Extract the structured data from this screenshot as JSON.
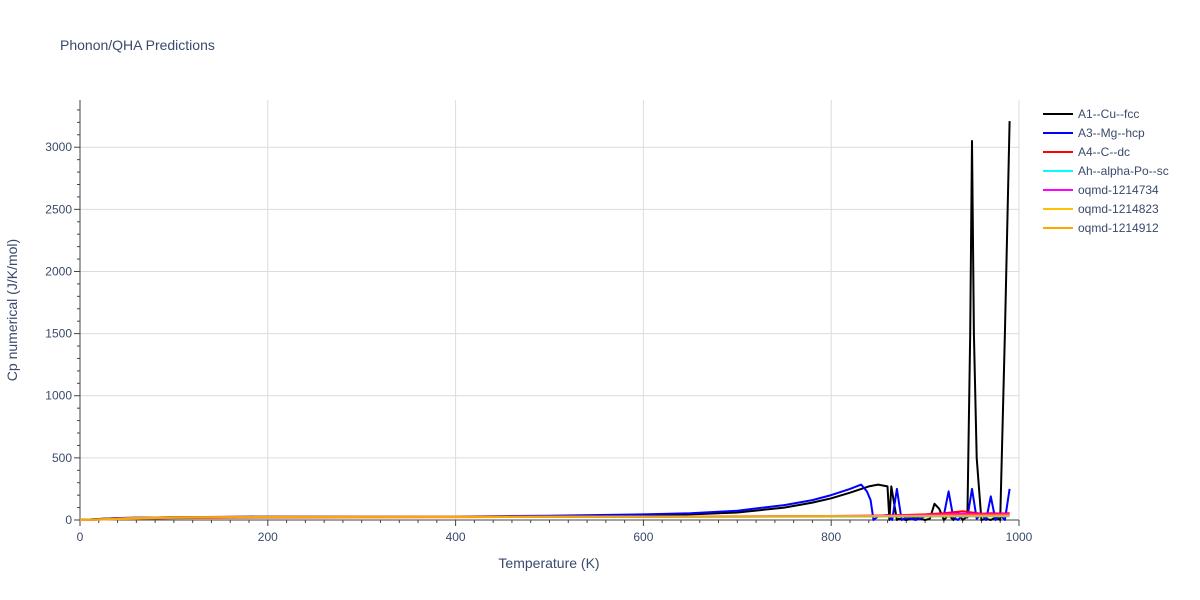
{
  "chart_data": {
    "type": "line",
    "title": "Phonon/QHA Predictions",
    "xlabel": "Temperature (K)",
    "ylabel": "Cp numerical (J/K/mol)",
    "xlim": [
      0,
      1000
    ],
    "ylim": [
      0,
      3380
    ],
    "xticks": [
      0,
      200,
      400,
      600,
      800,
      1000
    ],
    "yticks": [
      0,
      500,
      1000,
      1500,
      2000,
      2500,
      3000
    ],
    "grid": true,
    "legend_position": "top-right",
    "series": [
      {
        "name": "A1--Cu--fcc",
        "color": "#000000",
        "x": [
          0,
          20,
          40,
          60,
          100,
          150,
          200,
          300,
          400,
          500,
          600,
          650,
          700,
          750,
          780,
          800,
          820,
          840,
          850,
          860,
          862,
          864,
          870,
          872,
          880,
          890,
          900,
          905,
          910,
          915,
          920,
          925,
          930,
          935,
          940,
          945,
          948,
          950,
          952,
          955,
          960,
          965,
          970,
          975,
          980,
          985,
          990
        ],
        "y": [
          0,
          8,
          15,
          18,
          22,
          24,
          25,
          26,
          26,
          30,
          35,
          45,
          60,
          100,
          140,
          175,
          220,
          270,
          285,
          270,
          0,
          270,
          0,
          10,
          0,
          20,
          0,
          10,
          130,
          90,
          0,
          40,
          0,
          60,
          0,
          30,
          1500,
          3050,
          1500,
          500,
          0,
          10,
          0,
          20,
          0,
          1500,
          3210
        ]
      },
      {
        "name": "A3--Mg--hcp",
        "color": "#0000ff",
        "x": [
          0,
          20,
          40,
          60,
          100,
          150,
          200,
          300,
          400,
          500,
          600,
          650,
          700,
          750,
          780,
          800,
          820,
          832,
          838,
          842,
          845,
          850,
          860,
          865,
          870,
          875,
          880,
          890,
          900,
          920,
          925,
          930,
          935,
          940,
          945,
          950,
          955,
          960,
          965,
          970,
          975,
          980,
          985,
          990
        ],
        "y": [
          0,
          8,
          16,
          18,
          22,
          25,
          27,
          28,
          28,
          35,
          45,
          55,
          75,
          120,
          160,
          200,
          250,
          285,
          230,
          160,
          0,
          30,
          40,
          0,
          250,
          0,
          20,
          0,
          30,
          40,
          230,
          20,
          0,
          40,
          20,
          250,
          10,
          50,
          0,
          190,
          0,
          40,
          0,
          250
        ]
      },
      {
        "name": "A4--C--dc",
        "color": "#ff0000",
        "x": [
          0,
          100,
          200,
          300,
          400,
          500,
          600,
          700,
          800,
          850,
          900,
          920,
          940,
          950,
          960,
          970,
          980,
          990
        ],
        "y": [
          0,
          15,
          20,
          22,
          23,
          24,
          25,
          27,
          30,
          33,
          45,
          55,
          70,
          60,
          50,
          55,
          52,
          55
        ]
      },
      {
        "name": "Ah--alpha-Po--sc",
        "color": "#00ffff",
        "x": [
          0,
          100,
          200,
          300,
          400,
          500,
          600,
          700,
          800,
          900,
          990
        ],
        "y": [
          0,
          18,
          23,
          24,
          25,
          25,
          26,
          26,
          27,
          28,
          30
        ]
      },
      {
        "name": "oqmd-1214734",
        "color": "#ff00ff",
        "x": [
          0,
          100,
          200,
          300,
          400,
          500,
          600,
          700,
          800,
          900,
          940,
          960,
          990
        ],
        "y": [
          0,
          20,
          24,
          25,
          26,
          27,
          28,
          29,
          32,
          40,
          50,
          45,
          48
        ]
      },
      {
        "name": "oqmd-1214823",
        "color": "#ffc000",
        "x": [
          0,
          100,
          200,
          300,
          400,
          500,
          600,
          700,
          800,
          900,
          990
        ],
        "y": [
          0,
          20,
          24,
          25,
          25,
          26,
          27,
          28,
          30,
          32,
          34
        ]
      },
      {
        "name": "oqmd-1214912",
        "color": "#ffa500",
        "x": [
          0,
          50,
          100,
          200,
          300,
          400,
          500,
          600,
          700,
          800,
          900,
          990
        ],
        "y": [
          0,
          15,
          22,
          25,
          26,
          26,
          27,
          28,
          29,
          31,
          33,
          36
        ]
      }
    ]
  }
}
